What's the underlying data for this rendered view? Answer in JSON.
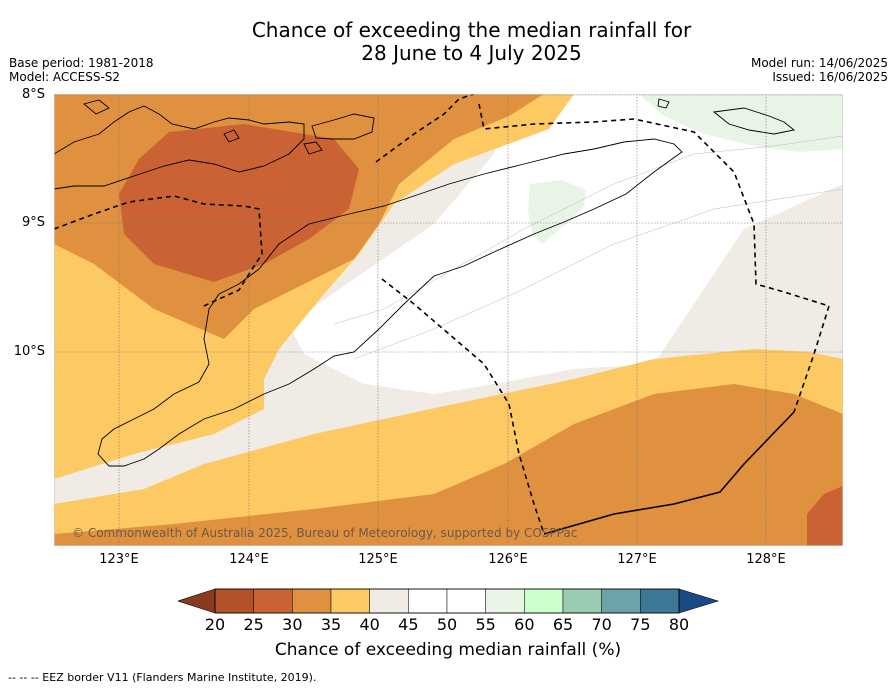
{
  "header": {
    "title_line1": "Chance of exceeding the median rainfall for",
    "title_line2": "28 June to 4 July 2025",
    "base_period": "Base period: 1981-2018",
    "model": "Model: ACCESS-S2",
    "model_run": "Model run: 14/06/2025",
    "issued": "Issued: 16/06/2025"
  },
  "axes": {
    "lat_labels": [
      "8°S",
      "9°S",
      "10°S"
    ],
    "lon_labels": [
      "123°E",
      "124°E",
      "125°E",
      "126°E",
      "127°E",
      "128°E"
    ]
  },
  "map": {
    "copyright": "© Commonwealth of Australia 2025, Bureau of Meteorology, supported by COSPPac",
    "extent": {
      "lon_min": 122.5,
      "lon_max": 128.6,
      "lat_min": -11.5,
      "lat_max": -8.0
    },
    "palette": {
      "20-25": "#b35129",
      "25-30": "#cb6234",
      "30-35": "#e0913f",
      "35-40": "#fdc963",
      "40-45": "#f0ebe4",
      "45-55": "#ffffff",
      "55-60": "#e8f4e6",
      "60-65": "#cafecb",
      "65-70": "#99ccb3",
      "70-75": "#6ba3a8",
      "75-80": "#3d7896",
      "80+": "#1a4a85"
    }
  },
  "colorbar": {
    "ticks": [
      "20",
      "25",
      "30",
      "35",
      "40",
      "45",
      "50",
      "55",
      "60",
      "65",
      "70",
      "75",
      "80"
    ],
    "colors": [
      "#b35129",
      "#cb6234",
      "#e0913f",
      "#fdc963",
      "#f0ebe4",
      "#ffffff",
      "#ffffff",
      "#e8f4e6",
      "#cafecb",
      "#99ccb3",
      "#6ba3a8",
      "#3d7896"
    ],
    "under_color": "#8a3a1e",
    "over_color": "#1a4a85",
    "label": "Chance of exceeding median rainfall (%)"
  },
  "footer": {
    "legend_note": "--  --  -- EEZ border V11 (Flanders Marine Institute, 2019)."
  }
}
